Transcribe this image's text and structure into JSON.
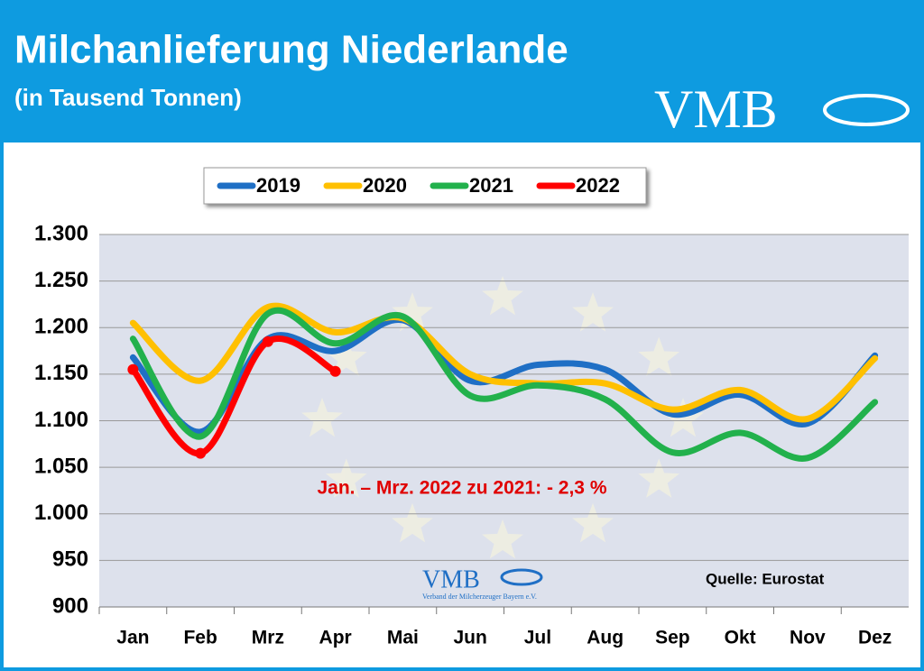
{
  "header": {
    "title": "Milchanlieferung Niederlande",
    "subtitle": "(in Tausend Tonnen)",
    "logo": "VMB"
  },
  "chart_data": {
    "type": "line",
    "categories": [
      "Jan",
      "Feb",
      "Mrz",
      "Apr",
      "Mai",
      "Jun",
      "Jul",
      "Aug",
      "Sep",
      "Okt",
      "Nov",
      "Dez"
    ],
    "series": [
      {
        "name": "2019",
        "color": "#1f6fc5",
        "values": [
          1168,
          1088,
          1188,
          1175,
          1208,
          1143,
          1160,
          1155,
          1107,
          1128,
          1097,
          1170
        ]
      },
      {
        "name": "2020",
        "color": "#ffc000",
        "values": [
          1205,
          1143,
          1222,
          1195,
          1210,
          1150,
          1140,
          1140,
          1112,
          1133,
          1102,
          1167
        ]
      },
      {
        "name": "2021",
        "color": "#22b14c",
        "values": [
          1188,
          1083,
          1215,
          1183,
          1212,
          1127,
          1138,
          1123,
          1066,
          1087,
          1060,
          1120
        ]
      },
      {
        "name": "2022",
        "color": "#ff0000",
        "values": [
          1155,
          1065,
          1185,
          1153,
          null,
          null,
          null,
          null,
          null,
          null,
          null,
          null
        ]
      }
    ],
    "ylim": [
      900,
      1300
    ],
    "yticks": [
      {
        "value": 900,
        "label": "900"
      },
      950,
      {
        "value": 1000,
        "label": "1.000"
      },
      {
        "value": 1050,
        "label": "1.050"
      },
      {
        "value": 1100,
        "label": "1.100"
      },
      {
        "value": 1150,
        "label": "1.150"
      },
      {
        "value": 1200,
        "label": "1.200"
      },
      {
        "value": 1250,
        "label": "1.250"
      },
      {
        "value": 1300,
        "label": "1.300"
      }
    ],
    "grid": true,
    "annotation": "Jan. – Mrz. 2022 zu 2021: - 2,3 %",
    "source": "Quelle: Eurostat",
    "watermark": {
      "logo": "VMB",
      "caption": "Verband der Milcherzeuger Bayern e.V."
    }
  }
}
